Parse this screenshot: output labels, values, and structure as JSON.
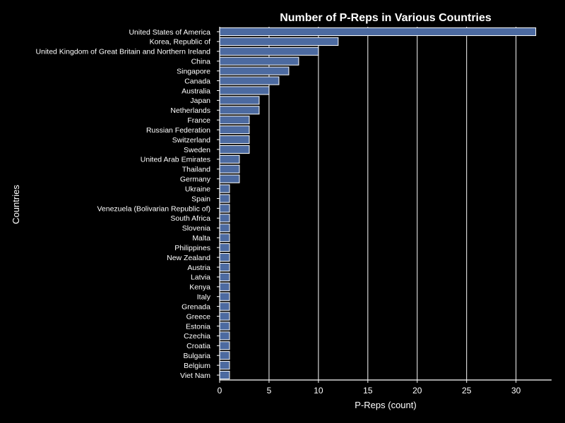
{
  "colors": {
    "background": "#000000",
    "bar_fill": "#4c6aa0",
    "bar_edge": "#ffffff",
    "text": "#ffffff",
    "grid": "#ffffff",
    "axis": "#ffffff"
  },
  "chart_data": {
    "type": "bar",
    "orientation": "horizontal",
    "title": "Number of P-Reps in Various Countries",
    "xlabel": "P-Reps (count)",
    "ylabel": "Countries",
    "xlim": [
      0,
      33.6
    ],
    "xticks": [
      0,
      5,
      10,
      15,
      20,
      25,
      30
    ],
    "grid": "vertical",
    "categories": [
      "United States of America",
      "Korea, Republic of",
      "United Kingdom of Great Britain and Northern Ireland",
      "China",
      "Singapore",
      "Canada",
      "Australia",
      "Japan",
      "Netherlands",
      "France",
      "Russian Federation",
      "Switzerland",
      "Sweden",
      "United Arab Emirates",
      "Thailand",
      "Germany",
      "Ukraine",
      "Spain",
      "Venezuela (Bolivarian Republic of)",
      "South Africa",
      "Slovenia",
      "Malta",
      "Philippines",
      "New Zealand",
      "Austria",
      "Latvia",
      "Kenya",
      "Italy",
      "Grenada",
      "Greece",
      "Estonia",
      "Czechia",
      "Croatia",
      "Bulgaria",
      "Belgium",
      "Viet Nam"
    ],
    "values": [
      32,
      12,
      10,
      8,
      7,
      6,
      5,
      4,
      4,
      3,
      3,
      3,
      3,
      2,
      2,
      2,
      1,
      1,
      1,
      1,
      1,
      1,
      1,
      1,
      1,
      1,
      1,
      1,
      1,
      1,
      1,
      1,
      1,
      1,
      1,
      1
    ]
  }
}
